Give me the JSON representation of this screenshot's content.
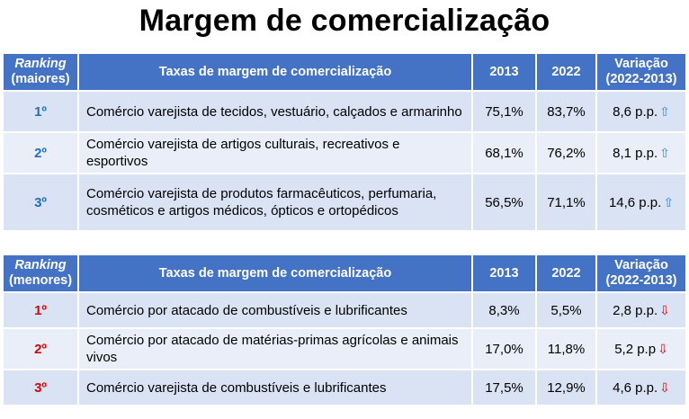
{
  "title": "Margem de comercialização",
  "top_table": {
    "headers": {
      "rank_line1": "Ranking",
      "rank_line2": "(maiores)",
      "category": "Taxas de margem de comercialização",
      "y2013": "2013",
      "y2022": "2022",
      "var_line1": "Variação",
      "var_line2": "(2022-2013)"
    },
    "rows": [
      {
        "rank": "1º",
        "desc": "Comércio varejista de tecidos, vestuário, calçados e armarinho",
        "v2013": "75,1%",
        "v2022": "83,7%",
        "variation": "8,6 p.p.",
        "arrow": "⇧"
      },
      {
        "rank": "2º",
        "desc": "Comércio varejista de artigos culturais, recreativos e esportivos",
        "v2013": "68,1%",
        "v2022": "76,2%",
        "variation": "8,1 p.p.",
        "arrow": "⇧"
      },
      {
        "rank": "3º",
        "desc": "Comércio varejista de produtos farmacêuticos, perfumaria, cosméticos e artigos médicos, ópticos e ortopédicos",
        "v2013": "56,5%",
        "v2022": "71,1%",
        "variation": "14,6 p.p.",
        "arrow": "⇧"
      }
    ]
  },
  "bottom_table": {
    "headers": {
      "rank_line1": "Ranking",
      "rank_line2": "(menores)",
      "category": "Taxas de margem de comercialização",
      "y2013": "2013",
      "y2022": "2022",
      "var_line1": "Variação",
      "var_line2": "(2022-2013)"
    },
    "rows": [
      {
        "rank": "1º",
        "desc": "Comércio por atacado de combustíveis e lubrificantes",
        "v2013": "8,3%",
        "v2022": "5,5%",
        "variation": "2,8 p.p.",
        "arrow": "⇩"
      },
      {
        "rank": "2º",
        "desc": "Comércio por atacado  de matérias-primas agrícolas e animais vivos",
        "v2013": "17,0%",
        "v2022": "11,8%",
        "variation": "5,2 p.p",
        "arrow": "⇩"
      },
      {
        "rank": "3º",
        "desc": "Comércio varejista de combustíveis e lubrificantes",
        "v2013": "17,5%",
        "v2022": "12,9%",
        "variation": "4,6 p.p.",
        "arrow": "⇩"
      }
    ]
  },
  "colors": {
    "header_bg": "#4472c4",
    "row_bg": "#dae3f3",
    "rank_top": "#1f6fbf",
    "rank_bottom": "#e00000",
    "arrow_up": "#2e86de",
    "arrow_down": "#e00000"
  },
  "icons": {
    "up": "arrow-up-icon",
    "down": "arrow-down-icon"
  }
}
